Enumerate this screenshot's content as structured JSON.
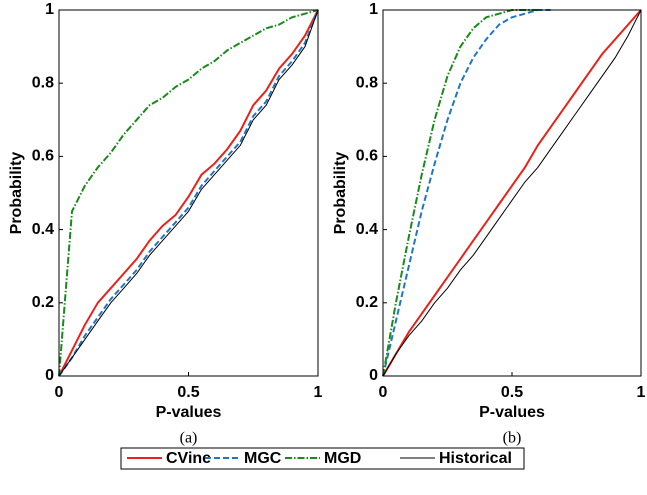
{
  "chart_data": [
    {
      "type": "line",
      "caption": "(a)",
      "xlabel": "P-values",
      "ylabel": "Probability",
      "x": [
        0,
        0.05,
        0.1,
        0.15,
        0.2,
        0.25,
        0.3,
        0.35,
        0.4,
        0.45,
        0.5,
        0.55,
        0.6,
        0.65,
        0.7,
        0.75,
        0.8,
        0.85,
        0.9,
        0.95,
        1
      ],
      "xlim": [
        0,
        1
      ],
      "ylim": [
        0,
        1
      ],
      "xticks": [
        0,
        0.5,
        1
      ],
      "yticks": [
        0,
        0.2,
        0.4,
        0.6,
        0.8,
        1
      ],
      "grid": false,
      "series": [
        {
          "name": "CVine",
          "color": "#e8221b",
          "dash": "solid",
          "values": [
            0,
            0.07,
            0.14,
            0.2,
            0.24,
            0.28,
            0.32,
            0.37,
            0.41,
            0.44,
            0.49,
            0.55,
            0.58,
            0.62,
            0.67,
            0.74,
            0.78,
            0.84,
            0.88,
            0.93,
            1
          ]
        },
        {
          "name": "MGC",
          "color": "#1f77c4",
          "dash": "dashed",
          "values": [
            0,
            0.05,
            0.11,
            0.16,
            0.21,
            0.25,
            0.29,
            0.34,
            0.38,
            0.42,
            0.46,
            0.52,
            0.56,
            0.6,
            0.64,
            0.71,
            0.75,
            0.82,
            0.86,
            0.91,
            1
          ]
        },
        {
          "name": "MGD",
          "color": "#1a8a1a",
          "dash": "dashdot",
          "values": [
            0,
            0.45,
            0.52,
            0.57,
            0.61,
            0.66,
            0.7,
            0.74,
            0.76,
            0.79,
            0.81,
            0.84,
            0.86,
            0.89,
            0.91,
            0.93,
            0.95,
            0.96,
            0.98,
            0.99,
            1
          ]
        },
        {
          "name": "Historical",
          "color": "#000000",
          "dash": "solid",
          "values": [
            0,
            0.05,
            0.1,
            0.15,
            0.2,
            0.24,
            0.28,
            0.33,
            0.37,
            0.41,
            0.45,
            0.51,
            0.55,
            0.59,
            0.63,
            0.7,
            0.74,
            0.81,
            0.85,
            0.9,
            1
          ]
        }
      ]
    },
    {
      "type": "line",
      "caption": "(b)",
      "xlabel": "P-values",
      "ylabel": "Probability",
      "x": [
        0,
        0.05,
        0.1,
        0.15,
        0.2,
        0.25,
        0.3,
        0.35,
        0.4,
        0.45,
        0.5,
        0.55,
        0.6,
        0.65,
        0.7,
        0.75,
        0.8,
        0.85,
        0.9,
        0.95,
        1
      ],
      "xlim": [
        0,
        1
      ],
      "ylim": [
        0,
        1
      ],
      "xticks": [
        0,
        0.5,
        1
      ],
      "yticks": [
        0,
        0.2,
        0.4,
        0.6,
        0.8,
        1
      ],
      "grid": false,
      "series": [
        {
          "color": "#e8221b",
          "dash": "solid",
          "values": [
            0,
            0.06,
            0.12,
            0.17,
            0.22,
            0.27,
            0.32,
            0.37,
            0.42,
            0.47,
            0.52,
            0.57,
            0.63,
            0.68,
            0.73,
            0.78,
            0.83,
            0.88,
            0.92,
            0.96,
            1
          ]
        },
        {
          "color": "#1f77c4",
          "dash": "dashed",
          "values": [
            0,
            0.15,
            0.3,
            0.45,
            0.58,
            0.7,
            0.8,
            0.87,
            0.92,
            0.96,
            0.98,
            0.99,
            1,
            1,
            null,
            null,
            null,
            null,
            null,
            null,
            null
          ]
        },
        {
          "color": "#1a8a1a",
          "dash": "dashdot",
          "values": [
            0,
            0.2,
            0.38,
            0.55,
            0.7,
            0.82,
            0.9,
            0.95,
            0.98,
            0.99,
            1,
            1,
            1,
            null,
            null,
            null,
            null,
            null,
            null,
            null,
            null
          ]
        },
        {
          "color": "#000000",
          "dash": "solid",
          "values": [
            0,
            0.06,
            0.11,
            0.15,
            0.2,
            0.24,
            0.29,
            0.33,
            0.38,
            0.43,
            0.48,
            0.53,
            0.57,
            0.62,
            0.67,
            0.72,
            0.77,
            0.82,
            0.87,
            0.93,
            1
          ]
        }
      ]
    }
  ]
}
